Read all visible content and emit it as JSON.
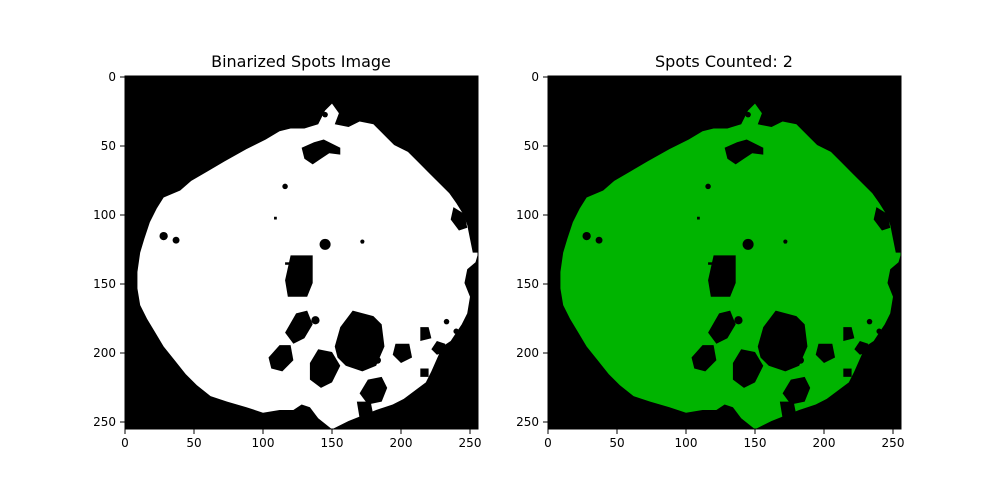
{
  "figure": {
    "panels": [
      {
        "title": "Binarized Spots Image",
        "x_ticks": [
          "0",
          "50",
          "100",
          "150",
          "200",
          "250"
        ],
        "y_ticks": [
          "0",
          "50",
          "100",
          "150",
          "200",
          "250"
        ],
        "colors": {
          "background": "#000000",
          "foreground": "#ffffff"
        }
      },
      {
        "title": "Spots Counted: 2",
        "x_ticks": [
          "0",
          "50",
          "100",
          "150",
          "200",
          "250"
        ],
        "y_ticks": [
          "0",
          "50",
          "100",
          "150",
          "200",
          "250"
        ],
        "colors": {
          "background": "#000000",
          "foreground": "#00b400"
        }
      }
    ]
  }
}
